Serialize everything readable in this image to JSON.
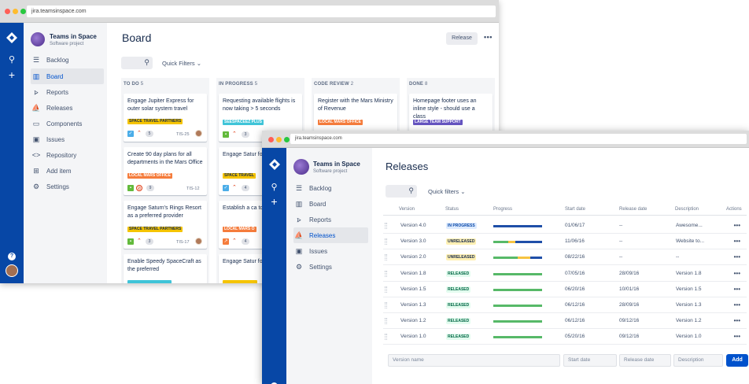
{
  "back_window": {
    "url": "jira.teamsinspace.com",
    "project": {
      "name": "Teams in Space",
      "type": "Software project"
    },
    "nav": [
      {
        "label": "Backlog",
        "icon": "backlog-icon"
      },
      {
        "label": "Board",
        "icon": "board-icon",
        "active": true
      },
      {
        "label": "Reports",
        "icon": "reports-icon"
      },
      {
        "label": "Releases",
        "icon": "releases-icon"
      },
      {
        "label": "Components",
        "icon": "components-icon"
      },
      {
        "label": "Issues",
        "icon": "issues-icon"
      },
      {
        "label": "Repository",
        "icon": "repository-icon"
      },
      {
        "label": "Add item",
        "icon": "add-item-icon"
      },
      {
        "label": "Settings",
        "icon": "settings-icon"
      }
    ],
    "title": "Board",
    "release_button": "Release",
    "quick_filters": "Quick Filters",
    "columns": [
      {
        "name": "TO DO",
        "count": "5"
      },
      {
        "name": "IN PROGRESS",
        "count": "5"
      },
      {
        "name": "CODE REVIEW",
        "count": "2"
      },
      {
        "name": "DONE",
        "count": "8"
      }
    ],
    "cards": [
      {
        "title": "Engage Jupiter Express for outer solar system travel",
        "label": "SPACE TRAVEL PARTNERS",
        "count": "5",
        "key": "TIS-25"
      },
      {
        "title": "Create 90 day plans for all departments in the Mars Office",
        "label": "LOCAL MARS OFFICE",
        "count": "9",
        "key": "TIS-12"
      },
      {
        "title": "Engage Saturn's Rings Resort as a preferred provider",
        "label": "SPACE TRAVEL PARTNERS",
        "count": "3",
        "key": "TIS-17"
      },
      {
        "title": "Enable Speedy SpaceCraft as the preferred"
      },
      {
        "title": "Requesting available flights is now taking > 5 seconds",
        "label": "SEESPACEEZ PLUS",
        "count": "3"
      },
      {
        "title": "Engage Satur for group tour",
        "label": "SPACE TRAVEL",
        "count": "4"
      },
      {
        "title": "Establish a ca to provide me",
        "label": "LOCAL MARS O",
        "count": "4"
      },
      {
        "title": "Engage Satur for group tour"
      },
      {
        "title": "Register with the Mars Ministry of Revenue",
        "label": "LOCAL MARS OFFICE"
      },
      {
        "title": "Homepage footer uses an inline style - should use a class",
        "label": "LARGE TEAM SUPPORT"
      }
    ],
    "colors": {
      "nav_blue": "#0747a6",
      "label_yellow": "#f5c400",
      "label_orange": "#f57c3c",
      "label_teal": "#3fc4d8",
      "label_purple": "#6554c0"
    }
  },
  "front_window": {
    "url": "jira.teamsinspace.com",
    "project": {
      "name": "Teams in Space",
      "type": "Software project"
    },
    "nav": [
      {
        "label": "Backlog",
        "icon": "backlog-icon"
      },
      {
        "label": "Board",
        "icon": "board-icon"
      },
      {
        "label": "Reports",
        "icon": "reports-icon"
      },
      {
        "label": "Releases",
        "icon": "releases-icon",
        "active": true
      },
      {
        "label": "Issues",
        "icon": "issues-icon"
      },
      {
        "label": "Settings",
        "icon": "settings-icon"
      }
    ],
    "title": "Releases",
    "quick_filters": "Quick filters",
    "headers": {
      "version": "Version",
      "status": "Status",
      "progress": "Progress",
      "start": "Start date",
      "release": "Release date",
      "description": "Description",
      "actions": "Actions"
    },
    "rows": [
      {
        "version": "Version 4.0",
        "status": "IN PROGRESS",
        "status_kind": "inprogress",
        "progress": {
          "done": 0,
          "in_progress": 0,
          "todo": 1.0
        },
        "start": "01/06/17",
        "release": "--",
        "description": "Awesome..."
      },
      {
        "version": "Version 3.0",
        "status": "UNRELEASED",
        "status_kind": "unreleased",
        "progress": {
          "done": 0.3,
          "in_progress": 0.15,
          "todo": 0.55
        },
        "start": "11/06/16",
        "release": "--",
        "description": "Website to..."
      },
      {
        "version": "Version 2.0",
        "status": "UNRELEASED",
        "status_kind": "unreleased",
        "progress": {
          "done": 0.5,
          "in_progress": 0.25,
          "todo": 0.25
        },
        "start": "08/22/16",
        "release": "--",
        "description": "--"
      },
      {
        "version": "Version 1.8",
        "status": "RELEASED",
        "status_kind": "released",
        "progress": {
          "done": 1.0,
          "in_progress": 0,
          "todo": 0
        },
        "start": "07/05/16",
        "release": "28/09/16",
        "description": "Version 1.8"
      },
      {
        "version": "Version 1.5",
        "status": "RELEASED",
        "status_kind": "released",
        "progress": {
          "done": 1.0,
          "in_progress": 0,
          "todo": 0
        },
        "start": "06/20/16",
        "release": "10/01/16",
        "description": "Version 1.5"
      },
      {
        "version": "Version 1.3",
        "status": "RELEASED",
        "status_kind": "released",
        "progress": {
          "done": 1.0,
          "in_progress": 0,
          "todo": 0
        },
        "start": "06/12/16",
        "release": "28/09/16",
        "description": "Version 1.3"
      },
      {
        "version": "Version 1.2",
        "status": "RELEASED",
        "status_kind": "released",
        "progress": {
          "done": 1.0,
          "in_progress": 0,
          "todo": 0
        },
        "start": "06/12/16",
        "release": "09/12/16",
        "description": "Version 1.2"
      },
      {
        "version": "Version 1.0",
        "status": "RELEASED",
        "status_kind": "released",
        "progress": {
          "done": 1.0,
          "in_progress": 0,
          "todo": 0
        },
        "start": "05/20/16",
        "release": "09/12/16",
        "description": "Version 1.0"
      }
    ],
    "form": {
      "version_placeholder": "Version name",
      "start_placeholder": "Start date",
      "release_placeholder": "Release date",
      "description_placeholder": "Description",
      "add": "Add"
    },
    "colors": {
      "done": "#57b968",
      "in_progress": "#f6c342",
      "todo": "#1f4fa8"
    }
  }
}
